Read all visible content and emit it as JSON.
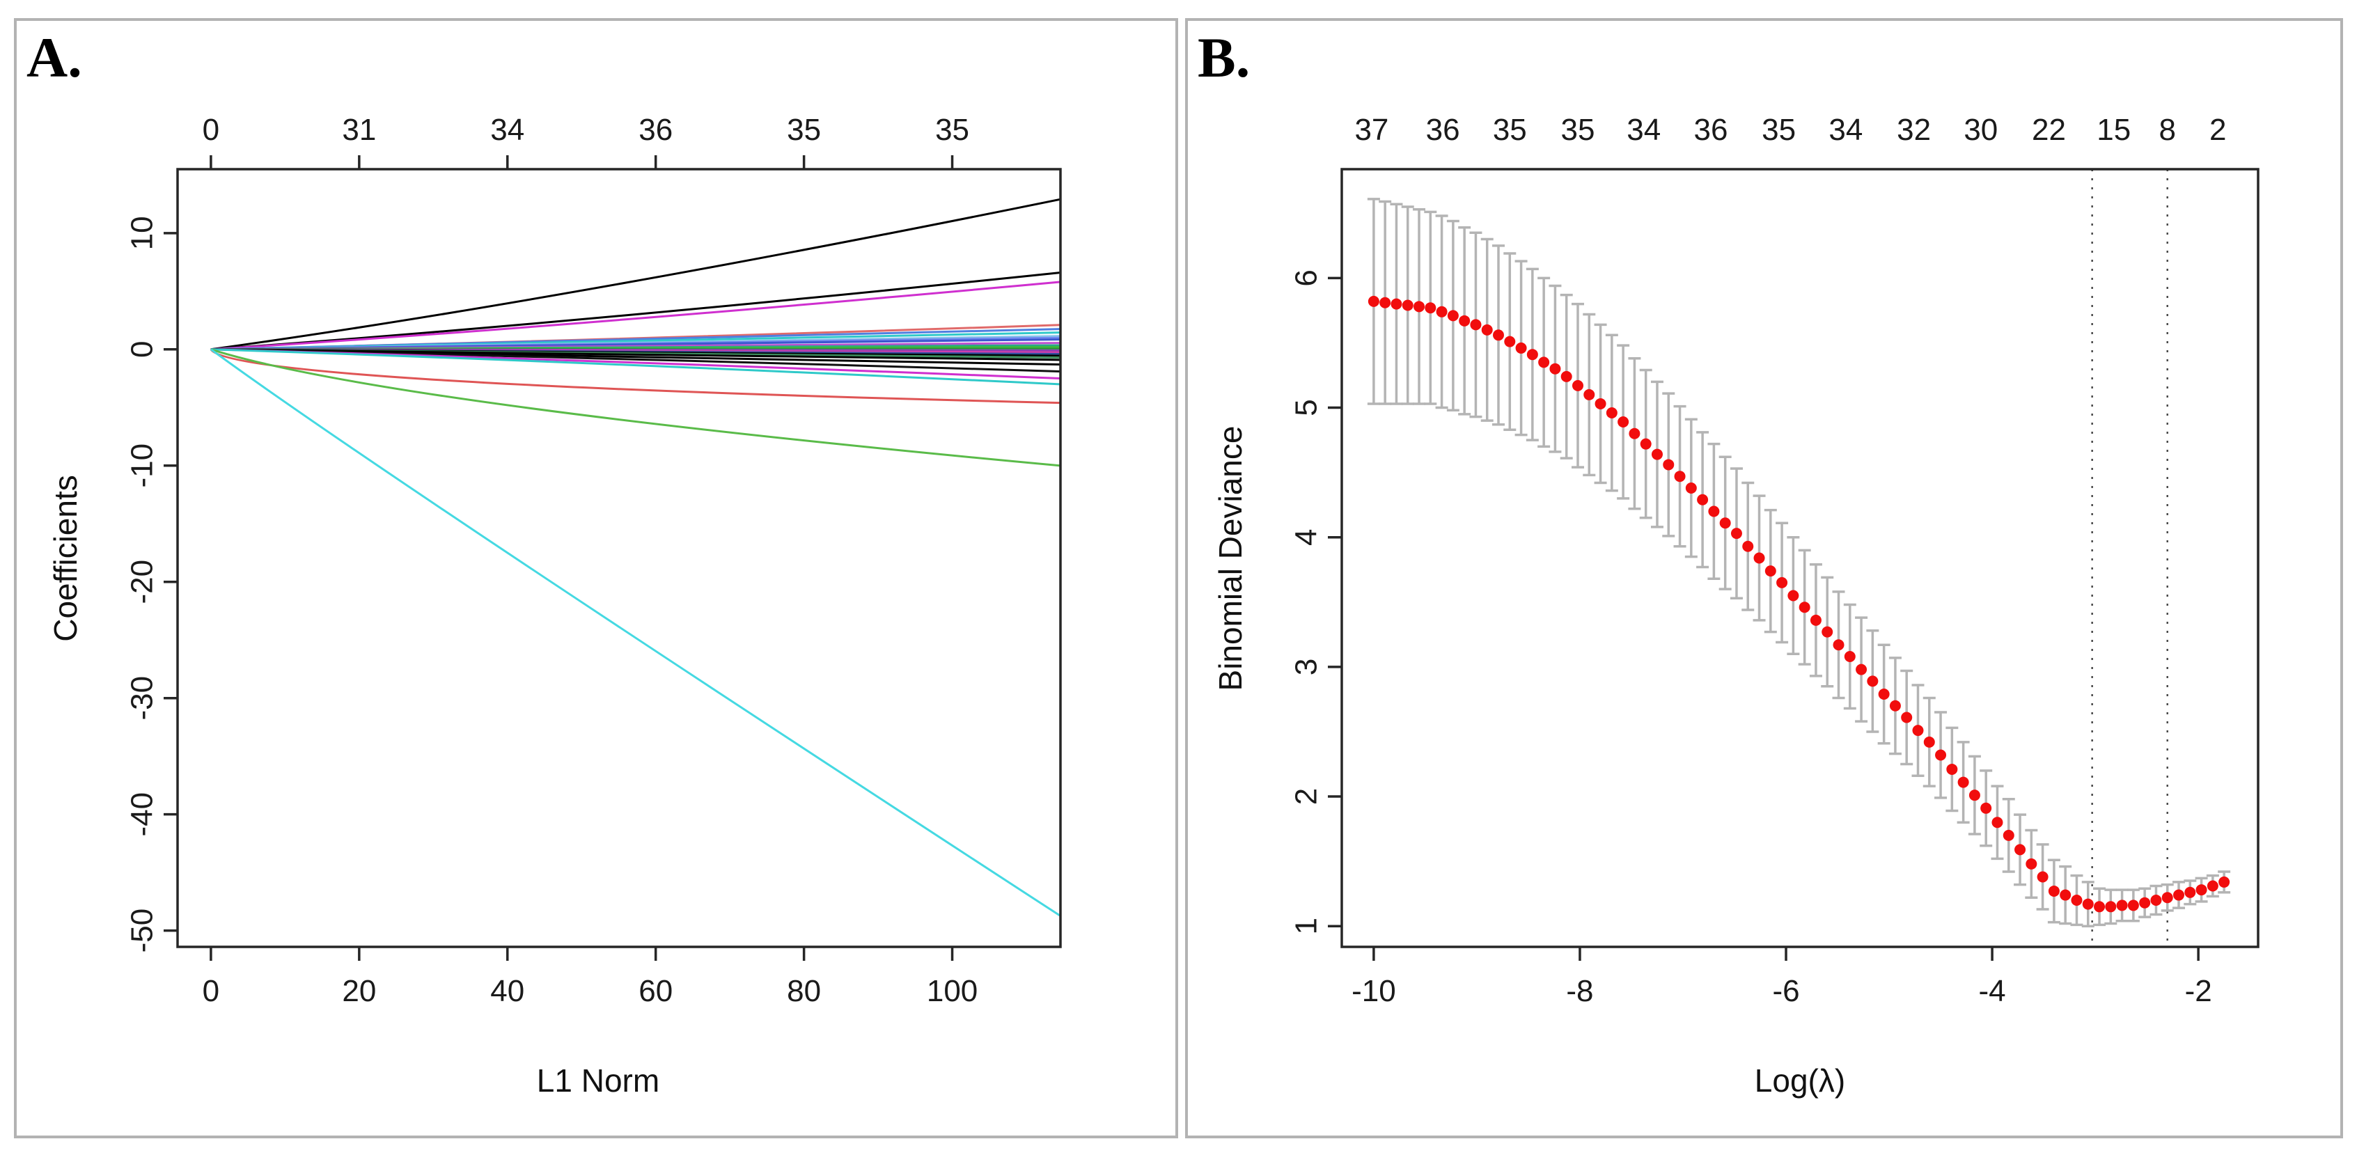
{
  "figure": {
    "panel_a": {
      "letter": "A.",
      "xlabel": "L1 Norm",
      "ylabel": "Coefficients"
    },
    "panel_b": {
      "letter": "B.",
      "xlabel": "Log(λ)",
      "ylabel": "Binomial Deviance"
    }
  },
  "colors": {
    "axis": "#262626",
    "tick_text": "#1a1a1a",
    "panel_border": "#b3b3b3",
    "cv_point": "#f10d0d",
    "cv_bar": "#b4b4b4",
    "vline": "#4a4a4a"
  },
  "chart_data": [
    {
      "id": "lasso-coefficient-paths",
      "type": "line",
      "panel": "A",
      "xlabel": "L1 Norm",
      "ylabel": "Coefficients",
      "xlim": [
        -4.5,
        114.6
      ],
      "ylim": [
        -51.4,
        15.5
      ],
      "x_ticks": [
        0,
        20,
        40,
        60,
        80,
        100
      ],
      "y_ticks": [
        10,
        0,
        -10,
        -20,
        -30,
        -40,
        -50
      ],
      "top_axis": {
        "tick_x": [
          0,
          20,
          40,
          60,
          80,
          100
        ],
        "labels": [
          "0",
          "31",
          "34",
          "36",
          "35",
          "35"
        ]
      },
      "x_start": 0,
      "x_end": 114.5,
      "grid": false,
      "series": [
        {
          "color": "#000000",
          "end": 12.9
        },
        {
          "color": "#000000",
          "end": 6.6
        },
        {
          "color": "#cf2fcf",
          "end": 5.8
        },
        {
          "color": "#e06a6a",
          "end": 2.1
        },
        {
          "color": "#4f7fe0",
          "end": 1.75
        },
        {
          "color": "#2fc9c9",
          "end": 1.45
        },
        {
          "color": "#86c3ea",
          "end": 1.15
        },
        {
          "color": "#6f86ef",
          "end": 1.0
        },
        {
          "color": "#3a57cf",
          "end": 0.85
        },
        {
          "color": "#bf4fcf",
          "end": 0.55
        },
        {
          "color": "#2aa887",
          "end": 0.35
        },
        {
          "color": "#3cbb3c",
          "end": 0.2
        },
        {
          "color": "#2f8f3f",
          "end": 0.05
        },
        {
          "color": "#9a3fcf",
          "end": -0.1
        },
        {
          "color": "#7f3f9f",
          "end": -0.18
        },
        {
          "color": "#cf3faf",
          "end": -0.25
        },
        {
          "color": "#2f4f9f",
          "end": -0.4
        },
        {
          "color": "#000000",
          "end": -0.55
        },
        {
          "color": "#3f8f5f",
          "end": -0.7
        },
        {
          "color": "#000000",
          "end": -0.9
        },
        {
          "color": "#000000",
          "end": -1.3
        },
        {
          "color": "#101010",
          "end": -1.9
        },
        {
          "color": "#cf2fcf",
          "end": -2.5
        },
        {
          "color": "#2fc9c9",
          "end": -3.0
        },
        {
          "color": "#df5555",
          "end": -4.6,
          "mid": [
            30,
            -2.6
          ]
        },
        {
          "color": "#5abb49",
          "end": -10.0,
          "mid": [
            40,
            -4.8
          ]
        },
        {
          "color": "#45d9e2",
          "end": -48.7,
          "mid": [
            40,
            -17.5
          ]
        }
      ]
    },
    {
      "id": "cv-binomial-deviance",
      "type": "scatter",
      "panel": "B",
      "xlabel": "Log(λ)",
      "ylabel": "Binomial Deviance",
      "xlim": [
        -10.31,
        -1.42
      ],
      "ylim": [
        0.84,
        6.84
      ],
      "x_ticks": [
        -10,
        -8,
        -6,
        -4,
        -2
      ],
      "y_ticks": [
        1,
        2,
        3,
        4,
        5,
        6
      ],
      "top_axis": {
        "labels": [
          "37",
          "36",
          "35",
          "35",
          "34",
          "36",
          "35",
          "34",
          "32",
          "30",
          "22",
          "15",
          "8",
          "2"
        ],
        "x": [
          -10.02,
          -9.33,
          -8.68,
          -8.02,
          -7.38,
          -6.73,
          -6.07,
          -5.42,
          -4.76,
          -4.11,
          -3.45,
          -2.82,
          -2.3,
          -1.81
        ]
      },
      "vlines": [
        -3.03,
        -2.3
      ],
      "grid": false,
      "points": {
        "x": [
          -10.0,
          -9.89,
          -9.78,
          -9.67,
          -9.56,
          -9.45,
          -9.34,
          -9.23,
          -9.12,
          -9.01,
          -8.9,
          -8.79,
          -8.68,
          -8.57,
          -8.46,
          -8.35,
          -8.24,
          -8.13,
          -8.02,
          -7.91,
          -7.8,
          -7.69,
          -7.58,
          -7.47,
          -7.36,
          -7.25,
          -7.14,
          -7.03,
          -6.92,
          -6.81,
          -6.7,
          -6.59,
          -6.48,
          -6.37,
          -6.26,
          -6.15,
          -6.04,
          -5.93,
          -5.82,
          -5.71,
          -5.6,
          -5.49,
          -5.38,
          -5.27,
          -5.16,
          -5.05,
          -4.94,
          -4.83,
          -4.72,
          -4.61,
          -4.5,
          -4.39,
          -4.28,
          -4.17,
          -4.06,
          -3.95,
          -3.84,
          -3.73,
          -3.62,
          -3.51,
          -3.4,
          -3.29,
          -3.18,
          -3.07,
          -2.96,
          -2.85,
          -2.74,
          -2.63,
          -2.52,
          -2.41,
          -2.3,
          -2.19,
          -2.08,
          -1.97,
          -1.86,
          -1.75
        ],
        "mean": [
          5.82,
          5.81,
          5.8,
          5.79,
          5.78,
          5.77,
          5.74,
          5.71,
          5.67,
          5.64,
          5.6,
          5.56,
          5.51,
          5.46,
          5.41,
          5.35,
          5.3,
          5.24,
          5.17,
          5.1,
          5.03,
          4.96,
          4.89,
          4.8,
          4.72,
          4.64,
          4.56,
          4.47,
          4.38,
          4.29,
          4.2,
          4.11,
          4.03,
          3.93,
          3.84,
          3.74,
          3.65,
          3.55,
          3.46,
          3.36,
          3.27,
          3.17,
          3.08,
          2.98,
          2.89,
          2.79,
          2.7,
          2.61,
          2.51,
          2.42,
          2.32,
          2.21,
          2.11,
          2.01,
          1.91,
          1.8,
          1.7,
          1.59,
          1.48,
          1.38,
          1.27,
          1.24,
          1.2,
          1.17,
          1.15,
          1.15,
          1.16,
          1.16,
          1.18,
          1.2,
          1.22,
          1.24,
          1.26,
          1.28,
          1.31,
          1.34
        ],
        "se": [
          0.79,
          0.78,
          0.77,
          0.76,
          0.75,
          0.74,
          0.74,
          0.73,
          0.72,
          0.71,
          0.7,
          0.69,
          0.68,
          0.67,
          0.66,
          0.65,
          0.64,
          0.63,
          0.63,
          0.62,
          0.61,
          0.6,
          0.59,
          0.58,
          0.57,
          0.56,
          0.55,
          0.54,
          0.53,
          0.52,
          0.52,
          0.51,
          0.5,
          0.49,
          0.48,
          0.47,
          0.46,
          0.45,
          0.44,
          0.43,
          0.42,
          0.41,
          0.4,
          0.4,
          0.39,
          0.38,
          0.37,
          0.36,
          0.35,
          0.34,
          0.33,
          0.32,
          0.31,
          0.3,
          0.29,
          0.28,
          0.28,
          0.27,
          0.26,
          0.25,
          0.24,
          0.22,
          0.19,
          0.17,
          0.14,
          0.13,
          0.12,
          0.12,
          0.11,
          0.11,
          0.1,
          0.1,
          0.09,
          0.09,
          0.08,
          0.08
        ]
      }
    }
  ]
}
